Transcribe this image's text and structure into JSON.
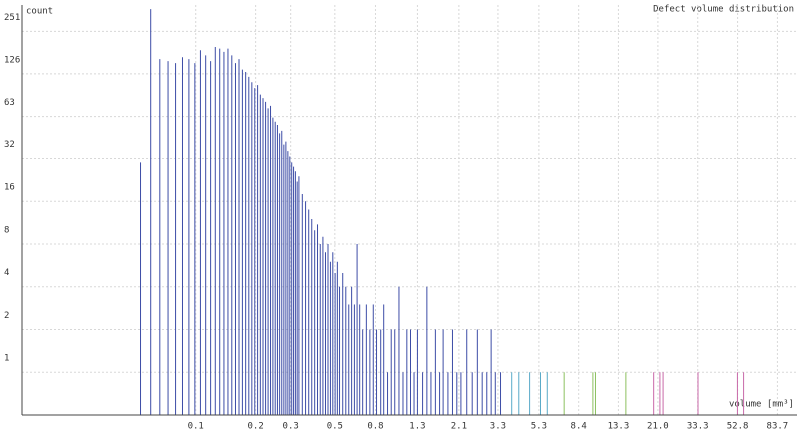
{
  "chart_data": {
    "type": "histogram",
    "title": "Defect volume distribution",
    "xlabel": "volume [mm³]",
    "ylabel": "count",
    "xscale": "log",
    "yscale": "log",
    "grid": true,
    "xlim": [
      0.0134,
      105
    ],
    "ylim": [
      0.5,
      385
    ],
    "xticks": [
      0.1,
      0.2,
      0.3,
      0.5,
      0.8,
      1.3,
      2.1,
      3.3,
      5.3,
      8.4,
      13.3,
      {
        "value": 21,
        "label": "21.0"
      },
      33.3,
      52.8,
      83.7
    ],
    "yticks": [
      1,
      2,
      4,
      8,
      16,
      32,
      63,
      126,
      251
    ],
    "series": [
      {
        "color": "#3c4ca6",
        "x": [
          0.0528,
          0.0594,
          0.066,
          0.0726,
          0.0792,
          0.0858,
          0.0924,
          0.099,
          0.1056,
          0.1122,
          0.1188,
          0.1254,
          0.132,
          0.1386,
          0.1452,
          0.1518,
          0.1584,
          0.165,
          0.1716,
          0.1782,
          0.1848,
          0.1914,
          0.198,
          0.2046,
          0.2112,
          0.2178,
          0.2244,
          0.231,
          0.2376,
          0.2442,
          0.2508,
          0.2574,
          0.264,
          0.2706,
          0.2772,
          0.2838,
          0.2904,
          0.297,
          0.3036,
          0.3102,
          0.3168,
          0.3234,
          0.33,
          0.3432,
          0.3564,
          0.3696,
          0.3828,
          0.396,
          0.4092,
          0.4224,
          0.4356,
          0.4488,
          0.462,
          0.4752,
          0.4884,
          0.5016,
          0.5148,
          0.528,
          0.5478,
          0.5676,
          0.5874,
          0.6072,
          0.627,
          0.6468,
          0.6666,
          0.69,
          0.72,
          0.75,
          0.78,
          0.81,
          0.85,
          0.88,
          0.92,
          0.96,
          1.0,
          1.05,
          1.1,
          1.15,
          1.2,
          1.25,
          1.3,
          1.38,
          1.45,
          1.52,
          1.6,
          1.68,
          1.75,
          1.85,
          1.95,
          2.05,
          2.15,
          2.3,
          2.45,
          2.6,
          2.75,
          2.9,
          3.05,
          3.2,
          3.4
        ],
        "values": [
          30,
          360,
          160,
          155,
          150,
          165,
          160,
          150,
          185,
          170,
          155,
          195,
          190,
          180,
          190,
          170,
          150,
          160,
          135,
          130,
          120,
          110,
          100,
          105,
          90,
          85,
          80,
          72,
          75,
          62,
          58,
          55,
          48,
          50,
          40,
          42,
          36,
          33,
          30,
          28,
          26,
          22,
          24,
          18,
          16,
          14,
          12,
          10,
          11,
          8,
          9,
          7,
          8,
          6,
          7,
          5,
          6,
          4,
          5,
          4,
          3,
          4,
          3,
          8,
          3,
          2,
          3,
          2,
          3,
          2,
          2,
          3,
          1,
          2,
          2,
          4,
          1,
          2,
          2,
          1,
          2,
          1,
          4,
          1,
          2,
          1,
          2,
          1,
          2,
          1,
          1,
          2,
          1,
          2,
          1,
          1,
          2,
          1,
          1
        ]
      },
      {
        "color": "#5aaac8",
        "x": [
          3.87,
          4.2,
          4.76,
          5.4,
          5.84
        ],
        "values": [
          1,
          1,
          1,
          1,
          1
        ]
      },
      {
        "color": "#8cc060",
        "x": [
          7.1,
          9.9,
          10.2,
          14.5
        ],
        "values": [
          1,
          1,
          1,
          1
        ]
      },
      {
        "color": "#c868a8",
        "x": [
          20,
          21.5,
          22.3,
          33.4,
          52.7,
          56.6
        ],
        "values": [
          1,
          1,
          1,
          1,
          1,
          1
        ]
      }
    ]
  }
}
